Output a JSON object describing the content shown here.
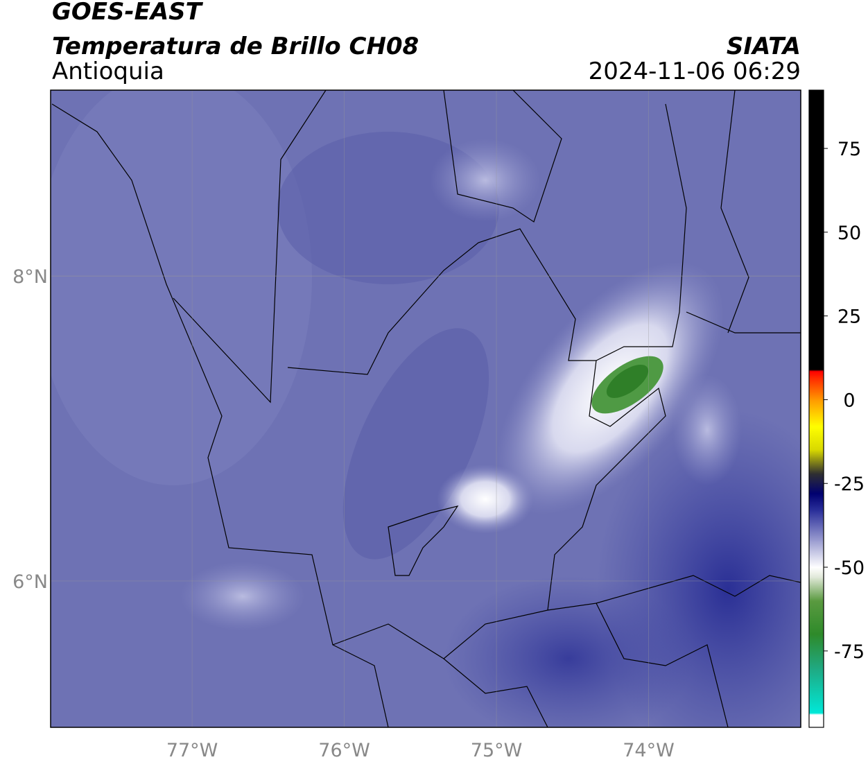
{
  "header": {
    "title": "GOES-EAST",
    "subtitle": "Temperatura de Brillo CH08",
    "region": "Antioquia",
    "source": "SIATA",
    "timestamp": "2024-11-06 06:29"
  },
  "map": {
    "xlim": [
      -77.93,
      -73.0
    ],
    "ylim": [
      5.04,
      9.22
    ],
    "xticks": [
      {
        "value": -77,
        "label": "77°W"
      },
      {
        "value": -76,
        "label": "76°W"
      },
      {
        "value": -75,
        "label": "75°W"
      },
      {
        "value": -74,
        "label": "74°W"
      }
    ],
    "yticks": [
      {
        "value": 8,
        "label": "8°N"
      },
      {
        "value": 6,
        "label": "6°N"
      }
    ]
  },
  "colorbar": {
    "lim": [
      -97.8,
      92.4
    ],
    "ticks": [
      75,
      50,
      25,
      0,
      -25,
      -50,
      -75
    ],
    "colormap": [
      {
        "value": -97.8,
        "color": "#ffffff"
      },
      {
        "value": -94,
        "color": "#ffffff"
      },
      {
        "value": -93.5,
        "color": "#00e8d8"
      },
      {
        "value": -80,
        "color": "#20a880"
      },
      {
        "value": -70,
        "color": "#2e8a2a"
      },
      {
        "value": -60,
        "color": "#5a9a40"
      },
      {
        "value": -53,
        "color": "#e0e8d8"
      },
      {
        "value": -50,
        "color": "#ffffff"
      },
      {
        "value": -42,
        "color": "#9a9cd0"
      },
      {
        "value": -33,
        "color": "#2a2f9a"
      },
      {
        "value": -28,
        "color": "#000070"
      },
      {
        "value": -22,
        "color": "#303030"
      },
      {
        "value": -15,
        "color": "#d8d800"
      },
      {
        "value": -8,
        "color": "#ffff00"
      },
      {
        "value": 0,
        "color": "#ff9900"
      },
      {
        "value": 7,
        "color": "#ff2000"
      },
      {
        "value": 8.5,
        "color": "#ff0000"
      },
      {
        "value": 9,
        "color": "#000000"
      },
      {
        "value": 92.4,
        "color": "#000000"
      }
    ]
  }
}
